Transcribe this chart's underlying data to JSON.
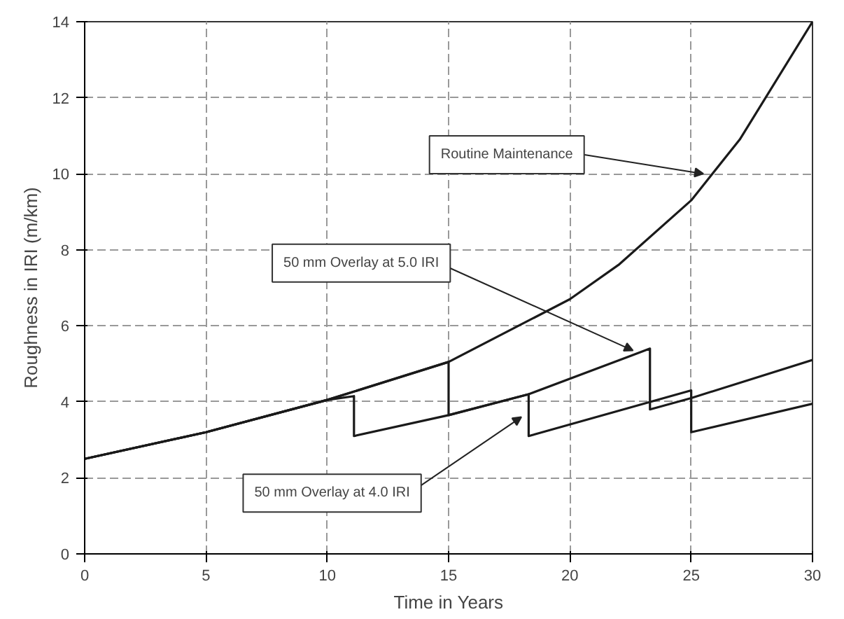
{
  "chart_data": {
    "type": "line",
    "xlabel": "Time in Years",
    "ylabel": "Roughness in IRI (m/km)",
    "xlim": [
      0,
      30
    ],
    "ylim": [
      0,
      14
    ],
    "xticks": [
      0,
      5,
      10,
      15,
      20,
      25,
      30
    ],
    "yticks": [
      0,
      2,
      4,
      6,
      8,
      10,
      12,
      14
    ],
    "grid": true,
    "line_style": "solid",
    "series": [
      {
        "color": "#1a1a1a",
        "x": [
          0,
          5,
          10,
          15,
          20,
          22,
          25,
          27,
          30
        ],
        "values": [
          2.5,
          3.2,
          4.05,
          5.05,
          6.7,
          7.6,
          9.3,
          10.9,
          14
        ]
      },
      {
        "color": "#1a1a1a",
        "x": [
          0,
          5,
          10,
          15,
          15,
          18.3,
          23.3,
          23.3,
          25,
          30
        ],
        "values": [
          2.5,
          3.2,
          4.05,
          5.05,
          3.65,
          4.2,
          5.4,
          3.8,
          4.1,
          5.1
        ]
      },
      {
        "color": "#1a1a1a",
        "x": [
          0,
          5,
          10,
          11.1,
          11.1,
          15,
          18.3,
          18.3,
          25,
          25,
          30
        ],
        "values": [
          2.5,
          3.2,
          4.05,
          4.15,
          3.1,
          3.65,
          4.2,
          3.1,
          4.3,
          3.2,
          3.95
        ]
      }
    ],
    "annotations": [
      {
        "text": "Routine Maintenance",
        "x": 25.5,
        "y": 10
      },
      {
        "text": "50 mm Overlay at 5.0 IRI",
        "x": 22.6,
        "y": 5.35
      },
      {
        "text": "50 mm Overlay at 4.0 IRI",
        "x": 18,
        "y": 3.6
      }
    ]
  }
}
